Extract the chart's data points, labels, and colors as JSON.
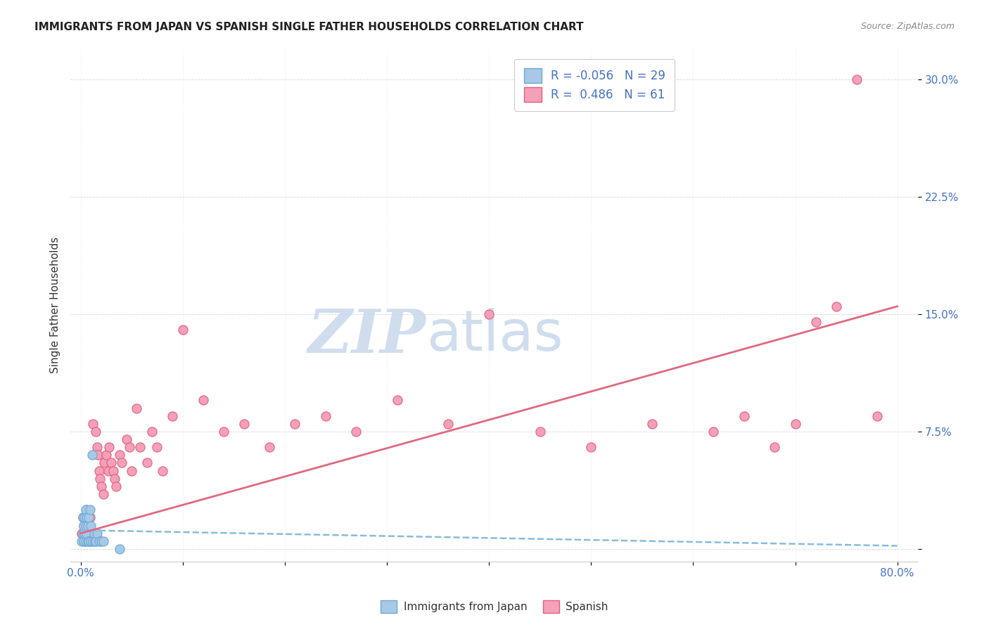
{
  "title": "IMMIGRANTS FROM JAPAN VS SPANISH SINGLE FATHER HOUSEHOLDS CORRELATION CHART",
  "source": "Source: ZipAtlas.com",
  "ylabel": "Single Father Households",
  "ytick_labels": [
    "",
    "7.5%",
    "15.0%",
    "22.5%",
    "30.0%"
  ],
  "ytick_values": [
    0,
    0.075,
    0.15,
    0.225,
    0.3
  ],
  "xlim": [
    -0.01,
    0.82
  ],
  "ylim": [
    -0.008,
    0.32
  ],
  "legend_japan_R": "-0.056",
  "legend_japan_N": "29",
  "legend_spanish_R": "0.486",
  "legend_spanish_N": "61",
  "japan_color": "#a8c8e8",
  "spanish_color": "#f4a0b8",
  "japan_edge_color": "#6aaad4",
  "spanish_edge_color": "#e06080",
  "japan_line_color": "#88bbdd",
  "spanish_line_color": "#e06880",
  "watermark_zip_color": "#c8d8ec",
  "watermark_atlas_color": "#c8d8ec",
  "japan_scatter_x": [
    0.001,
    0.002,
    0.002,
    0.003,
    0.003,
    0.004,
    0.004,
    0.005,
    0.005,
    0.005,
    0.006,
    0.006,
    0.007,
    0.007,
    0.008,
    0.008,
    0.009,
    0.01,
    0.01,
    0.011,
    0.012,
    0.013,
    0.014,
    0.015,
    0.016,
    0.018,
    0.02,
    0.022,
    0.038
  ],
  "japan_scatter_y": [
    0.005,
    0.01,
    0.02,
    0.015,
    0.005,
    0.01,
    0.02,
    0.015,
    0.005,
    0.025,
    0.01,
    0.02,
    0.015,
    0.005,
    0.02,
    0.005,
    0.025,
    0.005,
    0.015,
    0.06,
    0.005,
    0.01,
    0.005,
    0.005,
    0.01,
    0.005,
    0.005,
    0.005,
    0.0
  ],
  "spanish_scatter_x": [
    0.001,
    0.002,
    0.003,
    0.004,
    0.005,
    0.006,
    0.007,
    0.008,
    0.009,
    0.01,
    0.012,
    0.013,
    0.015,
    0.016,
    0.017,
    0.018,
    0.019,
    0.02,
    0.022,
    0.023,
    0.025,
    0.027,
    0.028,
    0.03,
    0.032,
    0.033,
    0.035,
    0.038,
    0.04,
    0.045,
    0.048,
    0.05,
    0.055,
    0.058,
    0.065,
    0.07,
    0.075,
    0.08,
    0.09,
    0.1,
    0.12,
    0.14,
    0.16,
    0.185,
    0.21,
    0.24,
    0.27,
    0.31,
    0.36,
    0.4,
    0.45,
    0.5,
    0.56,
    0.62,
    0.65,
    0.68,
    0.7,
    0.72,
    0.74,
    0.76,
    0.78
  ],
  "spanish_scatter_y": [
    0.01,
    0.02,
    0.015,
    0.005,
    0.02,
    0.025,
    0.01,
    0.015,
    0.02,
    0.005,
    0.08,
    0.01,
    0.075,
    0.065,
    0.06,
    0.05,
    0.045,
    0.04,
    0.035,
    0.055,
    0.06,
    0.05,
    0.065,
    0.055,
    0.05,
    0.045,
    0.04,
    0.06,
    0.055,
    0.07,
    0.065,
    0.05,
    0.09,
    0.065,
    0.055,
    0.075,
    0.065,
    0.05,
    0.085,
    0.14,
    0.095,
    0.075,
    0.08,
    0.065,
    0.08,
    0.085,
    0.075,
    0.095,
    0.08,
    0.15,
    0.075,
    0.065,
    0.08,
    0.075,
    0.085,
    0.065,
    0.08,
    0.145,
    0.155,
    0.3,
    0.085
  ],
  "japan_trend_x": [
    0.0,
    0.8
  ],
  "japan_trend_y": [
    0.012,
    0.002
  ],
  "spanish_trend_x": [
    0.0,
    0.8
  ],
  "spanish_trend_y": [
    0.01,
    0.155
  ]
}
